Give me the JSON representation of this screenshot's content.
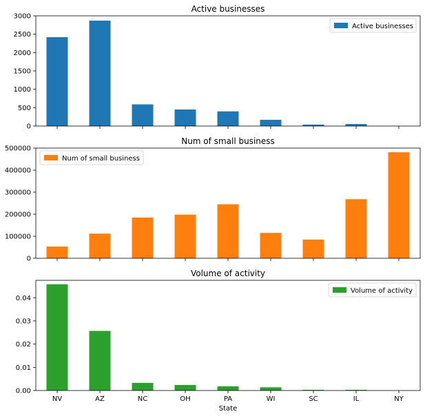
{
  "chart_data": [
    {
      "type": "bar",
      "title": "Active businesses",
      "categories": [
        "NV",
        "AZ",
        "NC",
        "OH",
        "PA",
        "WI",
        "SC",
        "IL",
        "NY"
      ],
      "series": [
        {
          "name": "Active businesses",
          "values": [
            2420,
            2870,
            590,
            450,
            400,
            170,
            40,
            55,
            0
          ]
        }
      ],
      "color": "#1f77b4",
      "ylim": [
        0,
        3000
      ],
      "yticks": [
        0,
        500,
        1000,
        1500,
        2000,
        2500,
        3000
      ],
      "ytick_labels": [
        "0",
        "500",
        "1000",
        "1500",
        "2000",
        "2500",
        "3000"
      ],
      "legend": "top-right",
      "xlabel": "",
      "grid": false
    },
    {
      "type": "bar",
      "title": "Num of small business",
      "categories": [
        "NV",
        "AZ",
        "NC",
        "OH",
        "PA",
        "WI",
        "SC",
        "IL",
        "NY"
      ],
      "series": [
        {
          "name": "Num of small business",
          "values": [
            53000,
            112000,
            185000,
            198000,
            245000,
            115000,
            85000,
            268000,
            481000
          ]
        }
      ],
      "color": "#ff7f0e",
      "ylim": [
        0,
        500000
      ],
      "yticks": [
        0,
        100000,
        200000,
        300000,
        400000,
        500000
      ],
      "ytick_labels": [
        "0",
        "100000",
        "200000",
        "300000",
        "400000",
        "500000"
      ],
      "legend": "top-left",
      "xlabel": "",
      "grid": false
    },
    {
      "type": "bar",
      "title": "Volume of activity",
      "categories": [
        "NV",
        "AZ",
        "NC",
        "OH",
        "PA",
        "WI",
        "SC",
        "IL",
        "NY"
      ],
      "series": [
        {
          "name": "Volume of activity",
          "values": [
            0.0458,
            0.0257,
            0.0033,
            0.0024,
            0.0018,
            0.0014,
            0.0003,
            0.0003,
            0.0
          ]
        }
      ],
      "color": "#2ca02c",
      "ylim": [
        0,
        0.0475
      ],
      "yticks": [
        0,
        0.01,
        0.02,
        0.03,
        0.04
      ],
      "ytick_labels": [
        "0.00",
        "0.01",
        "0.02",
        "0.03",
        "0.04"
      ],
      "legend": "top-right",
      "xlabel": "State",
      "grid": false
    }
  ]
}
